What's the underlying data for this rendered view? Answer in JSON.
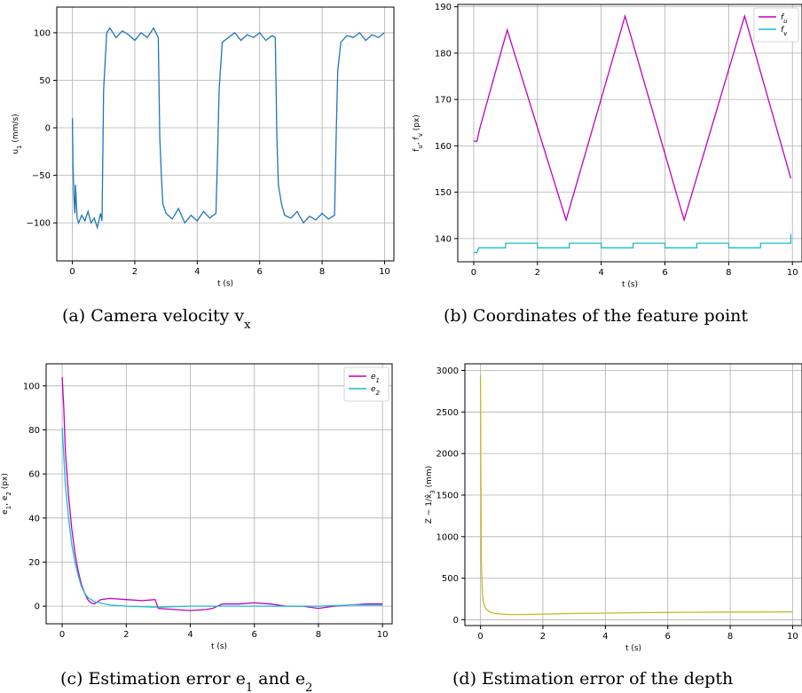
{
  "chart_data": [
    {
      "type": "line",
      "caption": "(a) Camera velocity v_x",
      "xlabel": "t (s)",
      "ylabel": "u_1 (mm/s)",
      "xlim": [
        -0.5,
        10.3
      ],
      "ylim": [
        -140,
        127
      ],
      "xticks": [
        0,
        2,
        4,
        6,
        8,
        10
      ],
      "yticks": [
        -100,
        -50,
        0,
        50,
        100
      ],
      "xtick_labels": [
        "0",
        "2",
        "4",
        "6",
        "8",
        "10"
      ],
      "ytick_labels": [
        "−100",
        "−50",
        "0",
        "50",
        "100"
      ],
      "grid": true,
      "series": [
        {
          "color": "#1f77b4",
          "x": [
            0,
            0.02,
            0.05,
            0.08,
            0.1,
            0.15,
            0.2,
            0.3,
            0.4,
            0.5,
            0.6,
            0.7,
            0.8,
            0.9,
            0.95,
            1.0,
            1.1,
            1.2,
            1.4,
            1.6,
            1.8,
            2.0,
            2.2,
            2.4,
            2.6,
            2.75,
            2.8,
            2.85,
            2.9,
            3.0,
            3.2,
            3.4,
            3.6,
            3.8,
            4.0,
            4.2,
            4.4,
            4.6,
            4.65,
            4.7,
            4.8,
            5.0,
            5.2,
            5.4,
            5.6,
            5.8,
            6.0,
            6.2,
            6.4,
            6.5,
            6.55,
            6.6,
            6.7,
            6.8,
            7.0,
            7.2,
            7.4,
            7.6,
            7.8,
            8.0,
            8.2,
            8.4,
            8.45,
            8.5,
            8.6,
            8.8,
            9.0,
            9.2,
            9.4,
            9.6,
            9.8,
            10.0
          ],
          "y": [
            10,
            -40,
            -75,
            -90,
            -60,
            -95,
            -100,
            -92,
            -98,
            -88,
            -100,
            -95,
            -105,
            -90,
            -98,
            40,
            100,
            105,
            95,
            102,
            98,
            92,
            100,
            95,
            105,
            95,
            -10,
            -50,
            -80,
            -90,
            -96,
            -85,
            -100,
            -92,
            -98,
            -88,
            -95,
            -90,
            -30,
            40,
            90,
            95,
            100,
            92,
            98,
            95,
            100,
            92,
            97,
            95,
            -10,
            -60,
            -80,
            -92,
            -95,
            -88,
            -100,
            -93,
            -97,
            -90,
            -96,
            -92,
            -10,
            60,
            90,
            97,
            95,
            100,
            92,
            98,
            95,
            100
          ]
        }
      ]
    },
    {
      "type": "line",
      "caption": "(b) Coordinates of the feature point",
      "xlabel": "t (s)",
      "ylabel": "f_u, f_v (px)",
      "xlim": [
        -0.5,
        10.3
      ],
      "ylim": [
        135,
        190.5
      ],
      "xticks": [
        0,
        2,
        4,
        6,
        8,
        10
      ],
      "yticks": [
        140,
        150,
        160,
        170,
        180,
        190
      ],
      "xtick_labels": [
        "0",
        "2",
        "4",
        "6",
        "8",
        "10"
      ],
      "ytick_labels": [
        "140",
        "150",
        "160",
        "170",
        "180",
        "190"
      ],
      "grid": true,
      "legend_position": "top-right",
      "series": [
        {
          "name": "f_u",
          "color": "#bf00bf",
          "x": [
            0,
            0.1,
            0.2,
            1.05,
            2.9,
            4.75,
            6.6,
            8.5,
            9.95
          ],
          "y": [
            161,
            161,
            164,
            185,
            144,
            188,
            144,
            188,
            153
          ]
        },
        {
          "name": "f_v",
          "color": "#17becf",
          "x": [
            0,
            0.1,
            0.15,
            0.3,
            0.3,
            1.0,
            1.0,
            2.0,
            2.0,
            3.0,
            3.0,
            4.0,
            4.0,
            5.0,
            5.0,
            6.0,
            6.0,
            7.0,
            7.0,
            8.0,
            8.0,
            9.0,
            9.0,
            9.95,
            9.95
          ],
          "y": [
            137,
            137,
            138,
            138,
            138,
            138,
            139,
            139,
            138,
            138,
            139,
            139,
            138,
            138,
            139,
            139,
            138,
            138,
            139,
            139,
            138,
            138,
            139,
            139,
            141
          ]
        }
      ]
    },
    {
      "type": "line",
      "caption": "(c) Estimation error e_1 and e_2",
      "xlabel": "t (s)",
      "ylabel": "e_1, e_2 (px)",
      "xlim": [
        -0.5,
        10.3
      ],
      "ylim": [
        -8,
        110
      ],
      "xticks": [
        0,
        2,
        4,
        6,
        8,
        10
      ],
      "yticks": [
        0,
        20,
        40,
        60,
        80,
        100
      ],
      "xtick_labels": [
        "0",
        "2",
        "4",
        "6",
        "8",
        "10"
      ],
      "ytick_labels": [
        "0",
        "20",
        "40",
        "60",
        "80",
        "100"
      ],
      "grid": true,
      "legend_position": "top-right",
      "series": [
        {
          "name": "e_1",
          "color": "#bf00bf",
          "x": [
            0,
            0.05,
            0.1,
            0.2,
            0.3,
            0.4,
            0.5,
            0.6,
            0.7,
            0.8,
            0.9,
            1.0,
            1.2,
            1.5,
            2.0,
            2.5,
            2.9,
            3.0,
            3.5,
            4.0,
            4.5,
            4.7,
            5.0,
            5.5,
            6.0,
            6.5,
            7.0,
            7.5,
            8.0,
            8.5,
            9.0,
            9.5,
            10.0
          ],
          "y": [
            104,
            90,
            70,
            50,
            35,
            24,
            16,
            10,
            6,
            3,
            1.5,
            1,
            3,
            3.5,
            3,
            2.5,
            3,
            -1,
            -1.5,
            -2,
            -1.5,
            -1,
            1,
            1,
            1.5,
            1,
            0,
            0,
            -1,
            0,
            0.5,
            1,
            1
          ]
        },
        {
          "name": "e_2",
          "color": "#17becf",
          "x": [
            0,
            0.05,
            0.1,
            0.2,
            0.3,
            0.4,
            0.5,
            0.6,
            0.7,
            0.8,
            0.9,
            1.0,
            1.5,
            2.0,
            3.0,
            4.0,
            5.0,
            6.0,
            7.0,
            8.0,
            9.0,
            10.0
          ],
          "y": [
            81,
            68,
            55,
            40,
            28,
            20,
            14,
            9,
            6,
            4,
            3,
            2,
            0.5,
            0,
            -0.5,
            0,
            0,
            0,
            0,
            0,
            0.5,
            0.5
          ]
        }
      ]
    },
    {
      "type": "line",
      "caption": "(d) Estimation error of the depth",
      "xlabel": "t (s)",
      "ylabel": "Z − 1/x̂_3 (mm)",
      "xlim": [
        -0.5,
        10.3
      ],
      "ylim": [
        -70,
        3080
      ],
      "xticks": [
        0,
        2,
        4,
        6,
        8,
        10
      ],
      "yticks": [
        0,
        500,
        1000,
        1500,
        2000,
        2500,
        3000
      ],
      "xtick_labels": [
        "0",
        "2",
        "4",
        "6",
        "8",
        "10"
      ],
      "ytick_labels": [
        "0",
        "500",
        "1000",
        "1500",
        "2000",
        "2500",
        "3000"
      ],
      "grid": true,
      "series": [
        {
          "color": "#bcbd22",
          "x": [
            0,
            0.01,
            0.02,
            0.03,
            0.05,
            0.07,
            0.1,
            0.15,
            0.2,
            0.3,
            0.4,
            0.6,
            0.8,
            1.0,
            1.5,
            2.0,
            3.0,
            4.0,
            5.0,
            6.0,
            7.0,
            8.0,
            9.0,
            10.0
          ],
          "y": [
            2940,
            2000,
            1200,
            700,
            400,
            280,
            200,
            150,
            120,
            95,
            80,
            70,
            65,
            62,
            63,
            68,
            75,
            80,
            85,
            88,
            90,
            92,
            93,
            94
          ]
        }
      ]
    }
  ]
}
